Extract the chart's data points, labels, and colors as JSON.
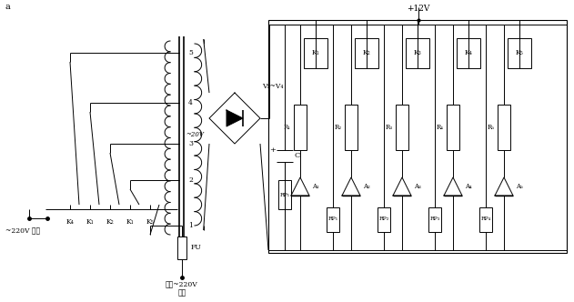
{
  "fig_width": 6.31,
  "fig_height": 3.32,
  "label_12V": "+12V",
  "label_v1v4": "V₁~V₄",
  "label_20V": "~20V",
  "label_220V_out": "~220V 输出",
  "label_mains": "市电~220V\n输入",
  "label_FU": "FU",
  "label_C": "C",
  "label_a": "a",
  "relay_labels": [
    "K₁",
    "K₂",
    "K₃",
    "K₄",
    "K₅"
  ],
  "R_labels": [
    "R₁",
    "R₂",
    "R₃",
    "R₄",
    "R₅"
  ],
  "A_labels": [
    "A₁",
    "A₂",
    "A₃",
    "A₄",
    "A₅"
  ],
  "RP_labels": [
    "RP₁",
    "RP₂",
    "RP₃",
    "RP₄"
  ],
  "tap_labels": [
    "1",
    "2",
    "3",
    "4",
    "5"
  ],
  "switch_labels": [
    "K₅",
    "K₁",
    "K₂",
    "K₁",
    "K₄"
  ]
}
